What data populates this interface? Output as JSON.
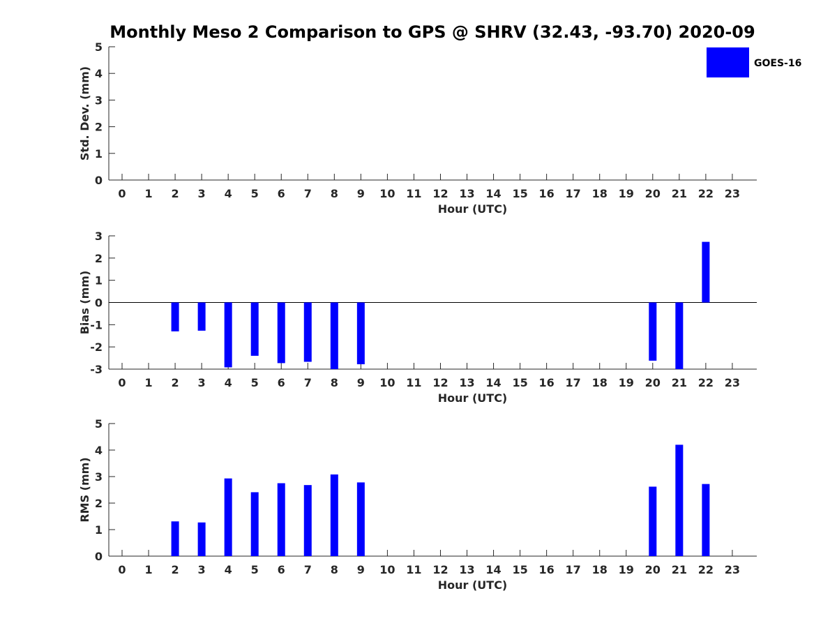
{
  "chart_data": [
    {
      "type": "bar",
      "title": "Monthly Meso 2 Comparison to GPS @ SHRV (32.43, -93.70) 2020-09",
      "xlabel": "Hour (UTC)",
      "ylabel": "Std. Dev. (mm)",
      "ylim": [
        0,
        5
      ],
      "yticks": [
        0,
        1,
        2,
        3,
        4,
        5
      ],
      "categories": [
        "0",
        "1",
        "2",
        "3",
        "4",
        "5",
        "6",
        "7",
        "8",
        "9",
        "10",
        "11",
        "12",
        "13",
        "14",
        "15",
        "16",
        "17",
        "18",
        "19",
        "20",
        "21",
        "22",
        "23"
      ],
      "series": [
        {
          "name": "GOES-16",
          "color": "#0000ff",
          "values": [
            null,
            null,
            null,
            null,
            null,
            null,
            null,
            null,
            null,
            null,
            null,
            null,
            null,
            null,
            null,
            null,
            null,
            null,
            null,
            null,
            null,
            null,
            null,
            null
          ]
        }
      ],
      "legend": "top-right"
    },
    {
      "type": "bar",
      "title": "",
      "xlabel": "Hour (UTC)",
      "ylabel": "Bias (mm)",
      "ylim": [
        -3,
        3
      ],
      "yticks": [
        -3,
        -2,
        -1,
        0,
        1,
        2,
        3
      ],
      "zero_line": true,
      "categories": [
        "0",
        "1",
        "2",
        "3",
        "4",
        "5",
        "6",
        "7",
        "8",
        "9",
        "10",
        "11",
        "12",
        "13",
        "14",
        "15",
        "16",
        "17",
        "18",
        "19",
        "20",
        "21",
        "22",
        "23"
      ],
      "series": [
        {
          "name": "GOES-16",
          "color": "#0000ff",
          "values": [
            null,
            null,
            -1.3,
            -1.27,
            -2.92,
            -2.4,
            -2.73,
            -2.67,
            -3.0,
            -2.78,
            null,
            null,
            null,
            null,
            null,
            null,
            null,
            null,
            null,
            null,
            -2.62,
            -3.0,
            2.73,
            null
          ]
        }
      ]
    },
    {
      "type": "bar",
      "title": "",
      "xlabel": "Hour (UTC)",
      "ylabel": "RMS (mm)",
      "ylim": [
        0,
        5
      ],
      "yticks": [
        0,
        1,
        2,
        3,
        4,
        5
      ],
      "categories": [
        "0",
        "1",
        "2",
        "3",
        "4",
        "5",
        "6",
        "7",
        "8",
        "9",
        "10",
        "11",
        "12",
        "13",
        "14",
        "15",
        "16",
        "17",
        "18",
        "19",
        "20",
        "21",
        "22",
        "23"
      ],
      "series": [
        {
          "name": "GOES-16",
          "color": "#0000ff",
          "values": [
            null,
            null,
            1.31,
            1.27,
            2.93,
            2.41,
            2.75,
            2.68,
            3.08,
            2.78,
            null,
            null,
            null,
            null,
            null,
            null,
            null,
            null,
            null,
            null,
            2.62,
            4.2,
            2.72,
            null
          ]
        }
      ]
    }
  ]
}
